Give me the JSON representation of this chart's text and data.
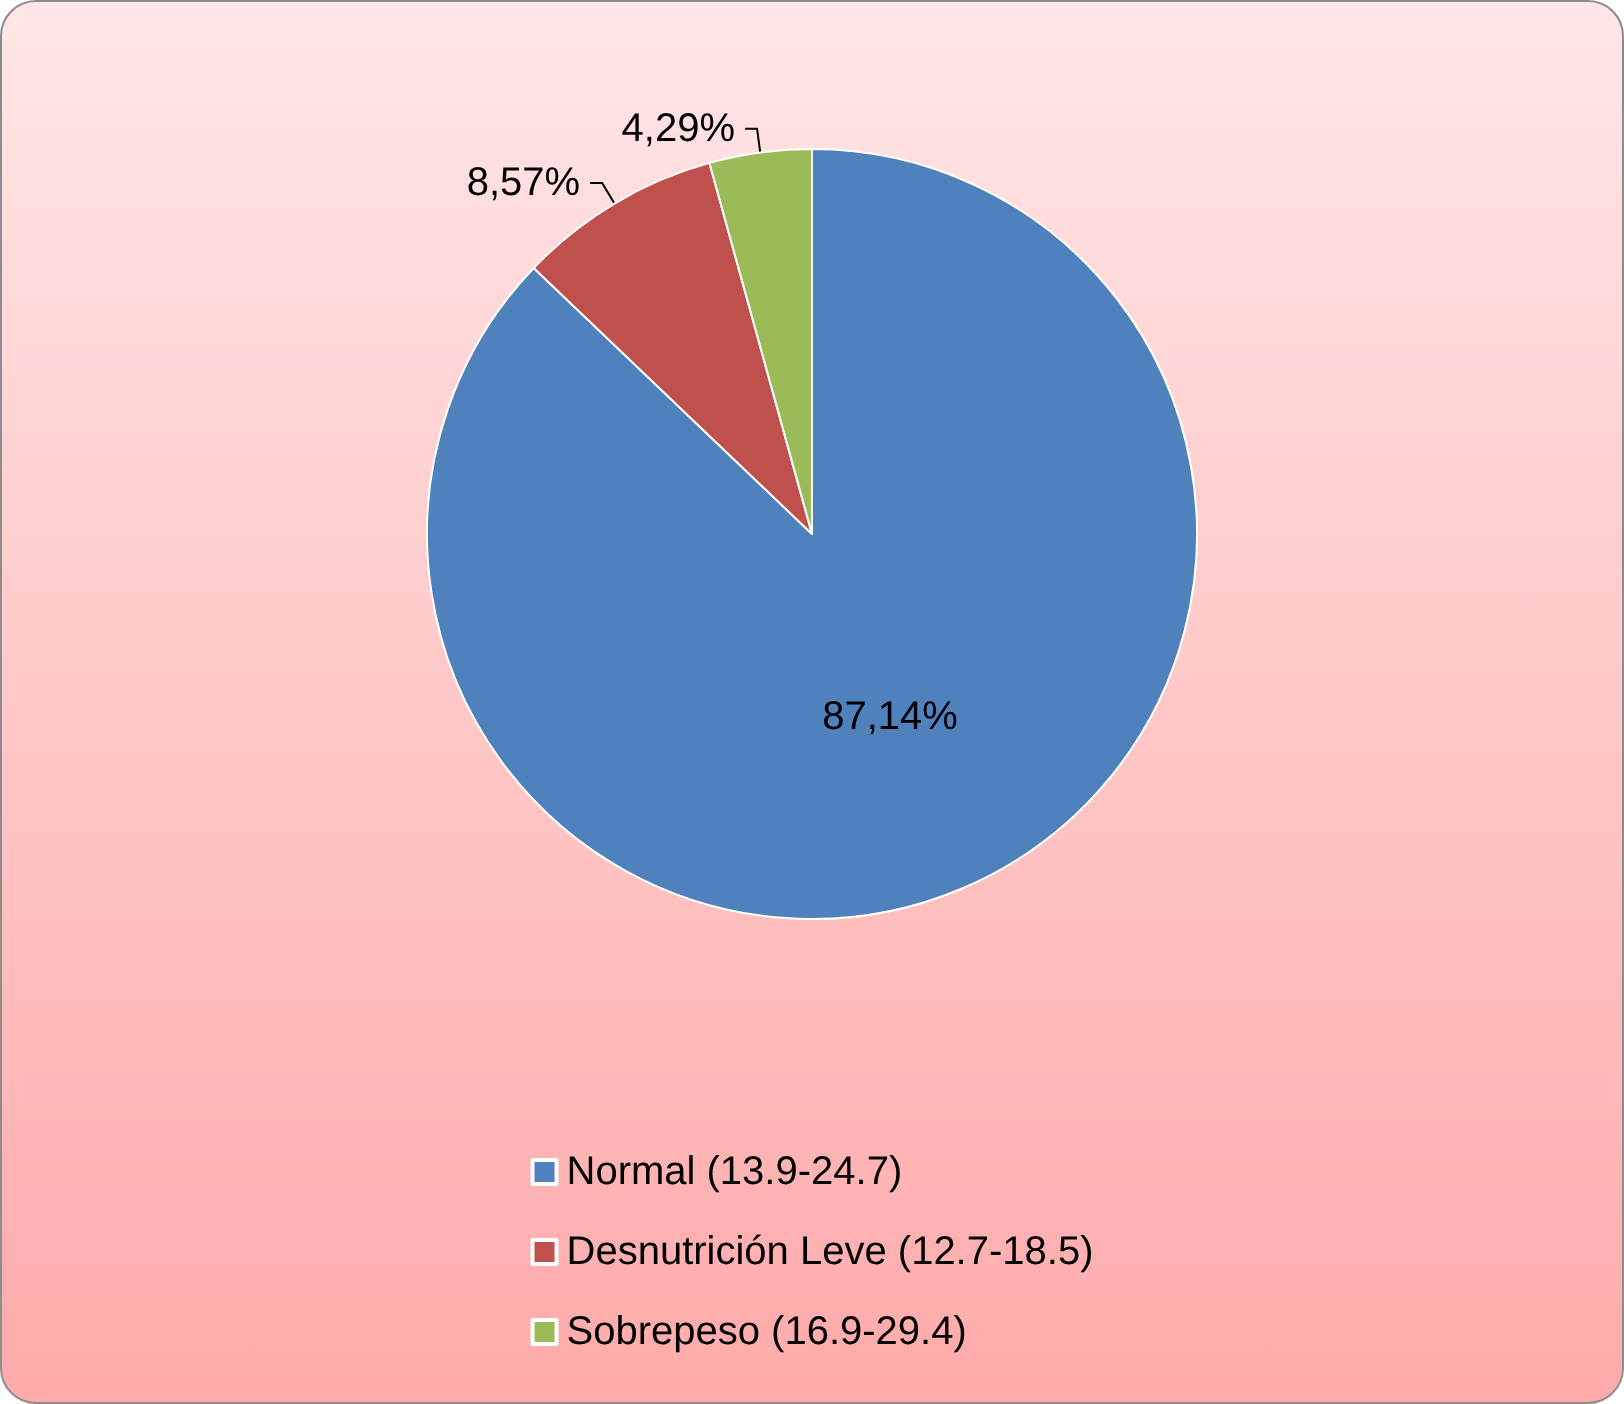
{
  "chart_data": {
    "type": "pie",
    "categories": [
      "Normal (13.9-24.7)",
      "Desnutrición Leve (12.7-18.5)",
      "Sobrepeso (16.9-29.4)"
    ],
    "values": [
      87.14,
      8.57,
      4.29
    ],
    "value_labels": [
      "87,14%",
      "8,57%",
      "4,29%"
    ],
    "colors": [
      "#4f81bd",
      "#c0504d",
      "#9bbb59"
    ],
    "legend": "bottom"
  }
}
